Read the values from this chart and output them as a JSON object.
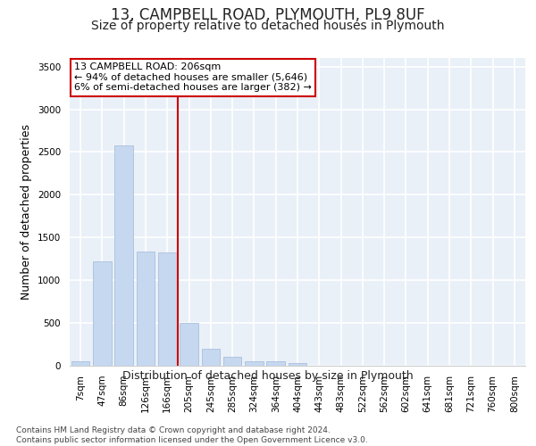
{
  "title": "13, CAMPBELL ROAD, PLYMOUTH, PL9 8UF",
  "subtitle": "Size of property relative to detached houses in Plymouth",
  "xlabel": "Distribution of detached houses by size in Plymouth",
  "ylabel": "Number of detached properties",
  "categories": [
    "7sqm",
    "47sqm",
    "86sqm",
    "126sqm",
    "166sqm",
    "205sqm",
    "245sqm",
    "285sqm",
    "324sqm",
    "364sqm",
    "404sqm",
    "443sqm",
    "483sqm",
    "522sqm",
    "562sqm",
    "602sqm",
    "641sqm",
    "681sqm",
    "721sqm",
    "760sqm",
    "800sqm"
  ],
  "values": [
    55,
    1220,
    2580,
    1340,
    1330,
    500,
    195,
    105,
    50,
    50,
    30,
    5,
    0,
    0,
    0,
    0,
    0,
    0,
    0,
    0,
    0
  ],
  "bar_color": "#c5d8f0",
  "bar_edge_color": "#a0b8d8",
  "vline_x_index": 5,
  "vline_color": "#cc0000",
  "annotation_text": "13 CAMPBELL ROAD: 206sqm\n← 94% of detached houses are smaller (5,646)\n6% of semi-detached houses are larger (382) →",
  "annotation_box_color": "#cc0000",
  "ylim": [
    0,
    3600
  ],
  "yticks": [
    0,
    500,
    1000,
    1500,
    2000,
    2500,
    3000,
    3500
  ],
  "background_color": "#eaf0f8",
  "grid_color": "#ffffff",
  "footer_text": "Contains HM Land Registry data © Crown copyright and database right 2024.\nContains public sector information licensed under the Open Government Licence v3.0.",
  "title_fontsize": 12,
  "subtitle_fontsize": 10,
  "xlabel_fontsize": 9,
  "ylabel_fontsize": 9,
  "tick_fontsize": 7.5,
  "footer_fontsize": 6.5,
  "ann_fontsize": 8
}
